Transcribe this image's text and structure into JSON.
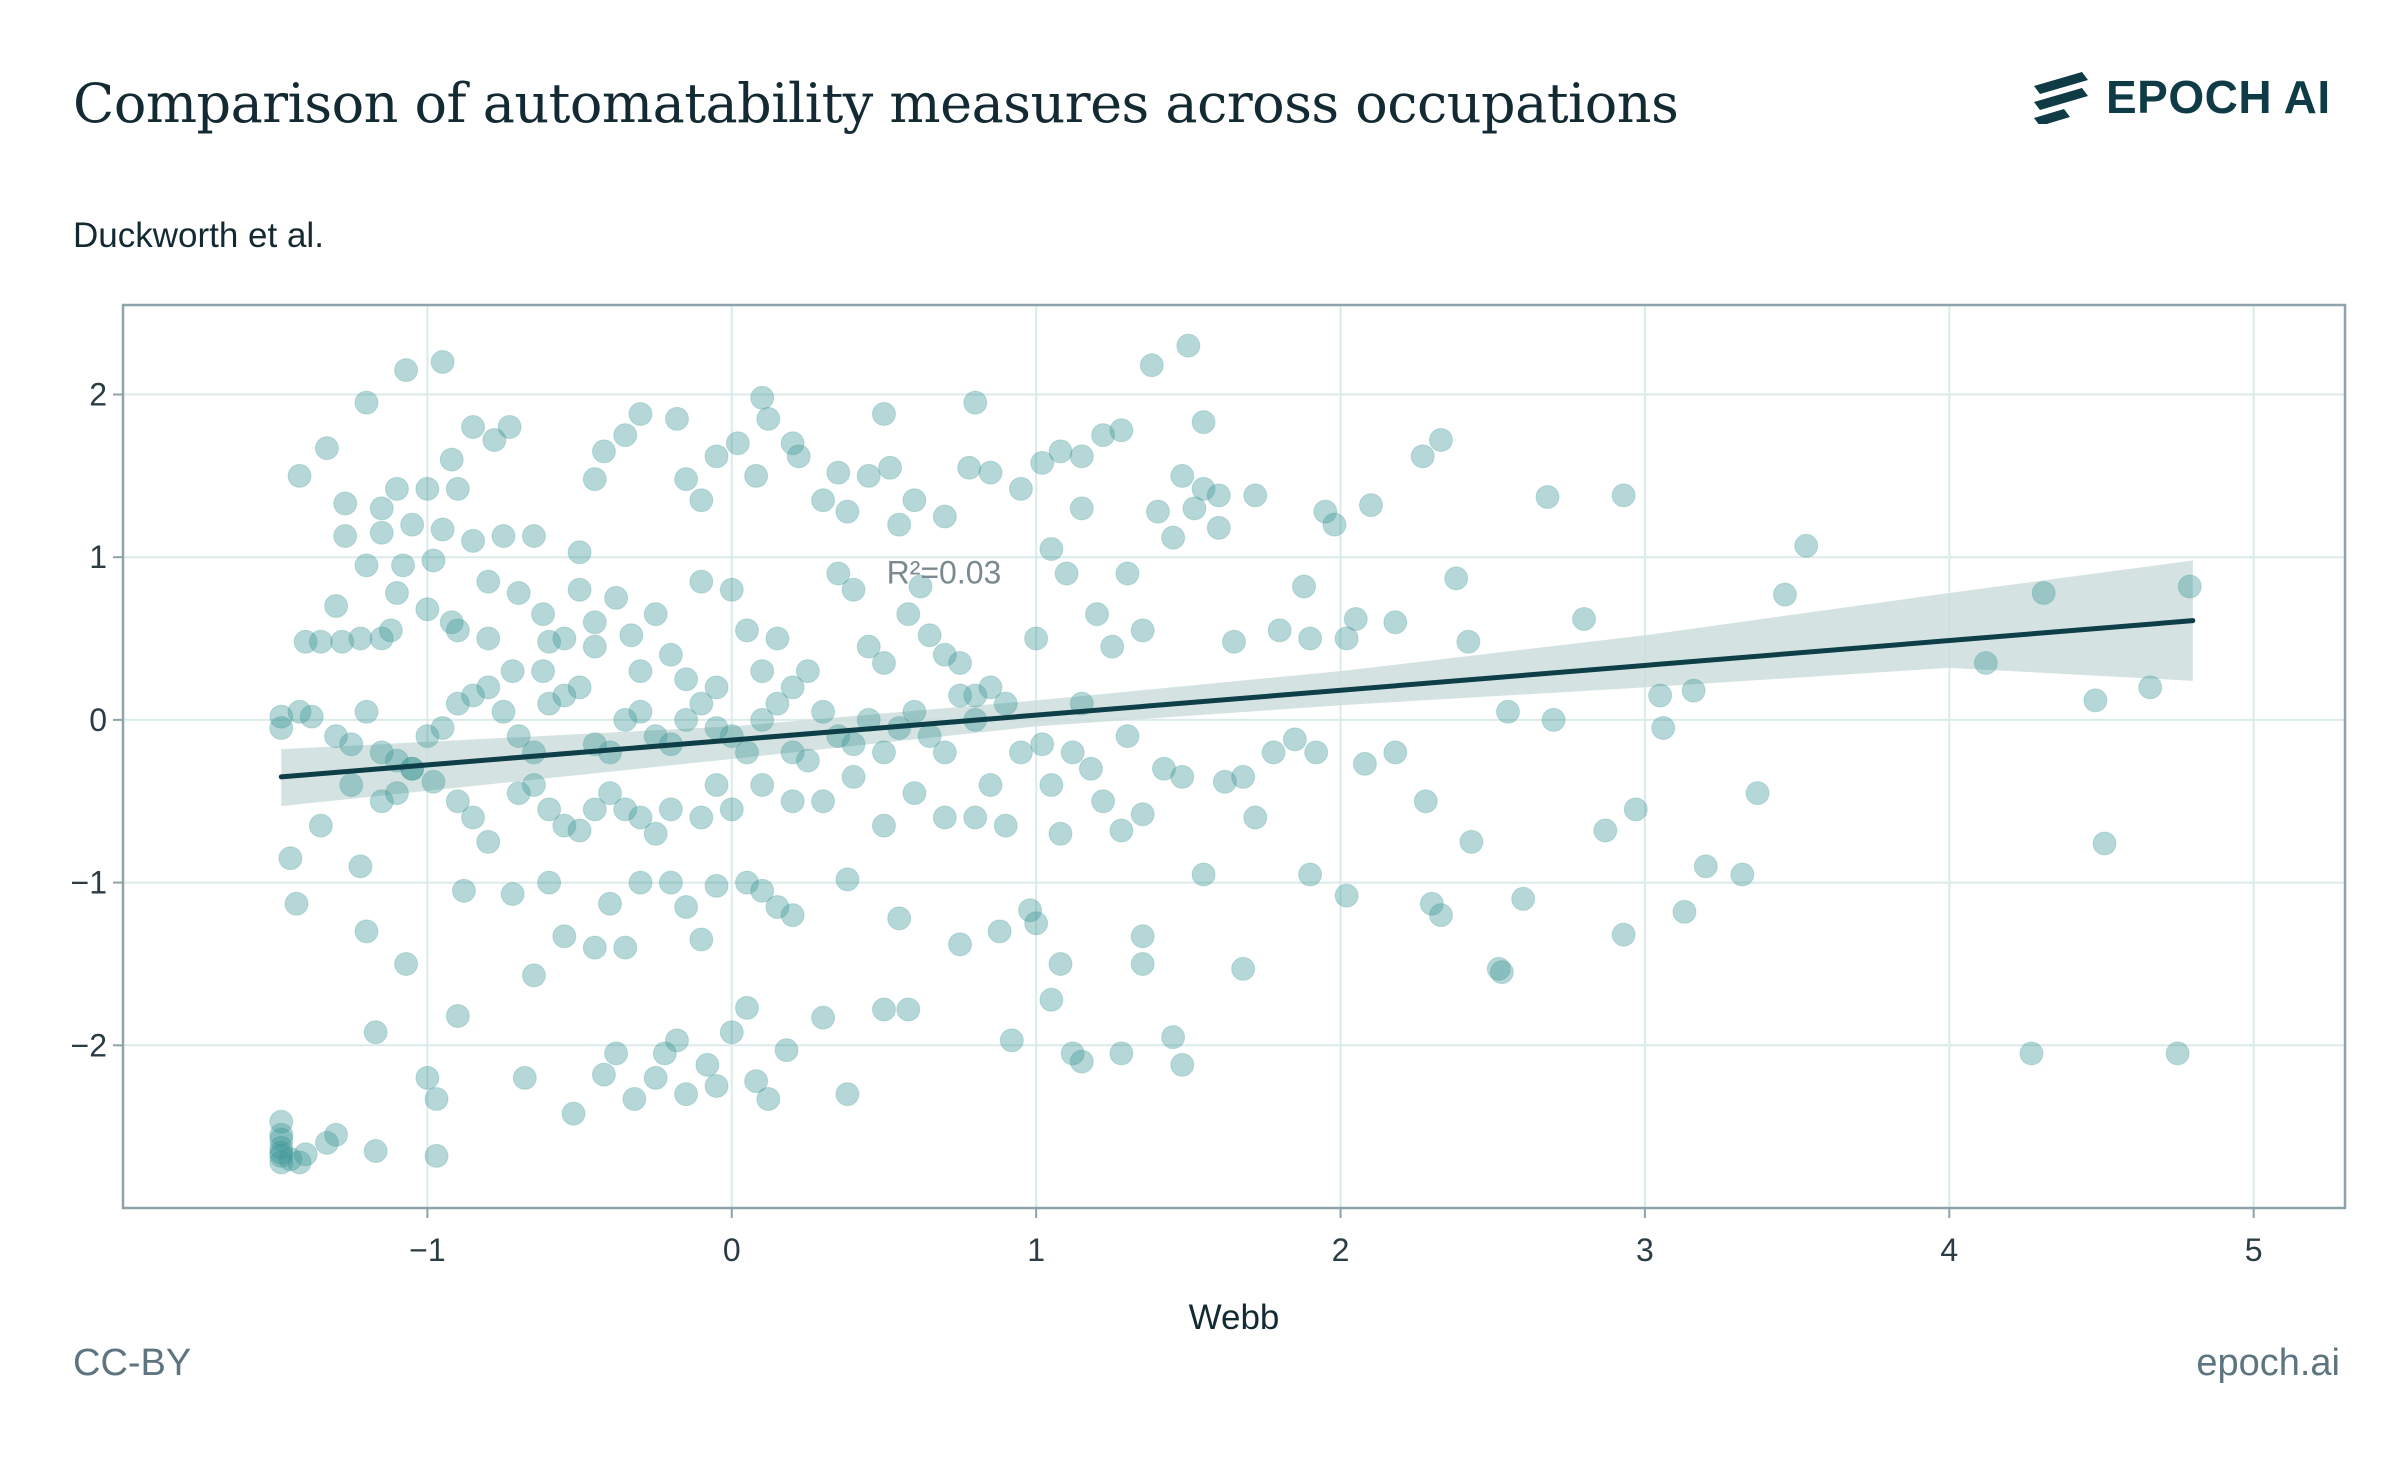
{
  "header": {
    "title": "Comparison of automatability measures across occupations",
    "brand": "EPOCH AI"
  },
  "footer": {
    "license": "CC-BY",
    "site": "epoch.ai"
  },
  "colors": {
    "points": "#3d9695",
    "line": "#0e3f48",
    "band": "#c9dcdb",
    "grid": "#dcebea",
    "frame": "#8ea3aa"
  },
  "chart_data": {
    "type": "scatter",
    "title": "Comparison of automatability measures across occupations",
    "subtitle": "Duckworth et al.",
    "xlabel": "Webb",
    "ylabel": "Duckworth et al.",
    "xlim": [
      -2.0,
      5.3
    ],
    "ylim": [
      -3.0,
      2.55
    ],
    "x_ticks": [
      -1,
      0,
      1,
      2,
      3,
      4,
      5
    ],
    "y_ticks": [
      -2,
      -1,
      0,
      1,
      2
    ],
    "x_tick_labels": [
      "−1",
      "0",
      "1",
      "2",
      "3",
      "4",
      "5"
    ],
    "y_tick_labels": [
      "−2",
      "−1",
      "0",
      "1",
      "2"
    ],
    "grid": true,
    "annotation": {
      "text": "R²=0.03",
      "x": 0.5,
      "y": 0.95
    },
    "regression": {
      "x_start": -1.48,
      "x_end": 4.8,
      "y_start": -0.35,
      "y_end": 0.61
    },
    "confidence_band": {
      "x": [
        -1.48,
        0.0,
        1.0,
        2.0,
        3.0,
        4.0,
        4.8
      ],
      "upper": [
        -0.18,
        -0.04,
        0.12,
        0.3,
        0.52,
        0.78,
        0.98
      ],
      "lower": [
        -0.53,
        -0.24,
        -0.04,
        0.09,
        0.2,
        0.32,
        0.24
      ]
    },
    "points": [
      [
        -1.48,
        -2.58
      ],
      [
        -1.48,
        -2.63
      ],
      [
        -1.48,
        -2.68
      ],
      [
        -1.48,
        -2.72
      ],
      [
        -1.48,
        -2.66
      ],
      [
        -1.48,
        -2.55
      ],
      [
        -1.48,
        -2.47
      ],
      [
        -1.45,
        -2.7
      ],
      [
        -1.42,
        -2.72
      ],
      [
        -1.4,
        -2.67
      ],
      [
        -1.33,
        -2.6
      ],
      [
        -1.3,
        -2.55
      ],
      [
        -1.17,
        -2.65
      ],
      [
        -0.97,
        -2.68
      ],
      [
        -1.42,
        1.5
      ],
      [
        -1.33,
        1.67
      ],
      [
        -1.2,
        1.95
      ],
      [
        -1.07,
        2.15
      ],
      [
        -0.95,
        2.2
      ],
      [
        -0.85,
        1.8
      ],
      [
        -0.73,
        1.8
      ],
      [
        -0.92,
        1.6
      ],
      [
        -0.78,
        1.72
      ],
      [
        -1.1,
        1.42
      ],
      [
        -1.0,
        1.42
      ],
      [
        -0.9,
        1.42
      ],
      [
        -1.15,
        1.3
      ],
      [
        -1.27,
        1.33
      ],
      [
        -1.27,
        1.13
      ],
      [
        -1.15,
        1.15
      ],
      [
        -1.05,
        1.2
      ],
      [
        -0.95,
        1.17
      ],
      [
        -0.85,
        1.1
      ],
      [
        -0.75,
        1.13
      ],
      [
        -0.65,
        1.13
      ],
      [
        -1.2,
        0.95
      ],
      [
        -1.08,
        0.95
      ],
      [
        -0.98,
        0.98
      ],
      [
        -0.8,
        0.85
      ],
      [
        -0.7,
        0.78
      ],
      [
        -0.62,
        0.65
      ],
      [
        -1.1,
        0.78
      ],
      [
        -1.0,
        0.68
      ],
      [
        -0.92,
        0.6
      ],
      [
        -1.3,
        0.7
      ],
      [
        -1.28,
        0.48
      ],
      [
        -1.22,
        0.5
      ],
      [
        -1.15,
        0.5
      ],
      [
        -1.12,
        0.55
      ],
      [
        -0.9,
        0.55
      ],
      [
        -0.8,
        0.5
      ],
      [
        -0.72,
        0.3
      ],
      [
        -0.6,
        0.48
      ],
      [
        -0.55,
        0.5
      ],
      [
        -0.62,
        0.3
      ],
      [
        -0.45,
        0.45
      ],
      [
        -1.4,
        0.48
      ],
      [
        -1.35,
        0.48
      ],
      [
        -1.48,
        0.02
      ],
      [
        -1.48,
        -0.05
      ],
      [
        -1.42,
        0.05
      ],
      [
        -1.38,
        0.02
      ],
      [
        -1.3,
        -0.1
      ],
      [
        -1.25,
        -0.15
      ],
      [
        -1.2,
        0.05
      ],
      [
        -1.15,
        -0.2
      ],
      [
        -1.1,
        -0.25
      ],
      [
        -1.05,
        -0.3
      ],
      [
        -1.0,
        -0.1
      ],
      [
        -0.95,
        -0.05
      ],
      [
        -0.9,
        0.1
      ],
      [
        -0.85,
        0.15
      ],
      [
        -0.8,
        0.2
      ],
      [
        -0.75,
        0.05
      ],
      [
        -0.7,
        -0.1
      ],
      [
        -0.65,
        -0.2
      ],
      [
        -0.6,
        0.1
      ],
      [
        -0.55,
        0.15
      ],
      [
        -0.5,
        0.2
      ],
      [
        -0.45,
        -0.15
      ],
      [
        -0.4,
        -0.2
      ],
      [
        -0.35,
        0.0
      ],
      [
        -0.3,
        0.05
      ],
      [
        -0.25,
        -0.1
      ],
      [
        -0.2,
        -0.15
      ],
      [
        -0.15,
        0.0
      ],
      [
        -0.1,
        0.1
      ],
      [
        -0.05,
        -0.05
      ],
      [
        0.0,
        -0.1
      ],
      [
        0.05,
        -0.2
      ],
      [
        0.1,
        0.0
      ],
      [
        0.15,
        0.1
      ],
      [
        0.2,
        -0.2
      ],
      [
        0.25,
        -0.25
      ],
      [
        0.3,
        0.05
      ],
      [
        0.35,
        -0.1
      ],
      [
        0.4,
        -0.15
      ],
      [
        0.45,
        0.0
      ],
      [
        0.5,
        -0.2
      ],
      [
        0.55,
        -0.05
      ],
      [
        0.6,
        0.05
      ],
      [
        0.65,
        -0.1
      ],
      [
        0.7,
        -0.2
      ],
      [
        0.75,
        0.15
      ],
      [
        0.8,
        0.0
      ],
      [
        0.85,
        -0.4
      ],
      [
        0.9,
        0.1
      ],
      [
        0.95,
        -0.2
      ],
      [
        -1.25,
        -0.4
      ],
      [
        -1.15,
        -0.5
      ],
      [
        -1.1,
        -0.45
      ],
      [
        -1.05,
        -0.3
      ],
      [
        -0.98,
        -0.38
      ],
      [
        -0.9,
        -0.5
      ],
      [
        -0.85,
        -0.6
      ],
      [
        -0.8,
        -0.75
      ],
      [
        -0.7,
        -0.45
      ],
      [
        -0.65,
        -0.4
      ],
      [
        -0.6,
        -0.55
      ],
      [
        -0.55,
        -0.65
      ],
      [
        -0.5,
        -0.68
      ],
      [
        -0.45,
        -0.55
      ],
      [
        -0.4,
        -0.45
      ],
      [
        -0.35,
        -0.55
      ],
      [
        -0.3,
        -0.6
      ],
      [
        -0.25,
        -0.7
      ],
      [
        -0.2,
        -0.55
      ],
      [
        -0.1,
        -0.6
      ],
      [
        -0.05,
        -0.4
      ],
      [
        0.0,
        -0.55
      ],
      [
        0.1,
        -0.4
      ],
      [
        0.2,
        -0.5
      ],
      [
        0.3,
        -0.5
      ],
      [
        0.4,
        -0.35
      ],
      [
        0.5,
        -0.65
      ],
      [
        0.6,
        -0.45
      ],
      [
        0.7,
        -0.6
      ],
      [
        0.8,
        -0.6
      ],
      [
        0.9,
        -0.65
      ],
      [
        -1.45,
        -0.85
      ],
      [
        -1.43,
        -1.13
      ],
      [
        -1.35,
        -0.65
      ],
      [
        -1.22,
        -0.9
      ],
      [
        -1.2,
        -1.3
      ],
      [
        -1.07,
        -1.5
      ],
      [
        -0.88,
        -1.05
      ],
      [
        -0.72,
        -1.07
      ],
      [
        -0.6,
        -1.0
      ],
      [
        -0.55,
        -1.33
      ],
      [
        -0.45,
        -1.4
      ],
      [
        -0.4,
        -1.13
      ],
      [
        -0.35,
        -1.4
      ],
      [
        -0.3,
        -1.0
      ],
      [
        -0.2,
        -1.0
      ],
      [
        -0.15,
        -1.15
      ],
      [
        -0.1,
        -1.35
      ],
      [
        -0.05,
        -1.02
      ],
      [
        0.05,
        -1.0
      ],
      [
        0.1,
        -1.05
      ],
      [
        0.15,
        -1.15
      ],
      [
        0.2,
        -1.2
      ],
      [
        0.38,
        -0.98
      ],
      [
        0.55,
        -1.22
      ],
      [
        0.75,
        -1.38
      ],
      [
        0.88,
        -1.3
      ],
      [
        0.98,
        -1.17
      ],
      [
        -1.17,
        -1.92
      ],
      [
        -1.0,
        -2.2
      ],
      [
        -0.97,
        -2.33
      ],
      [
        -0.9,
        -1.82
      ],
      [
        -0.68,
        -2.2
      ],
      [
        -0.65,
        -1.57
      ],
      [
        -0.52,
        -2.42
      ],
      [
        -0.42,
        -2.18
      ],
      [
        -0.38,
        -2.05
      ],
      [
        -0.32,
        -2.33
      ],
      [
        -0.25,
        -2.2
      ],
      [
        -0.22,
        -2.05
      ],
      [
        -0.18,
        -1.97
      ],
      [
        -0.15,
        -2.3
      ],
      [
        -0.08,
        -2.12
      ],
      [
        -0.05,
        -2.25
      ],
      [
        0.0,
        -1.92
      ],
      [
        0.05,
        -1.77
      ],
      [
        0.08,
        -2.22
      ],
      [
        0.12,
        -2.33
      ],
      [
        0.18,
        -2.03
      ],
      [
        0.3,
        -1.83
      ],
      [
        0.38,
        -2.3
      ],
      [
        0.5,
        -1.78
      ],
      [
        0.58,
        -1.78
      ],
      [
        0.92,
        -1.97
      ],
      [
        -0.5,
        1.03
      ],
      [
        -0.45,
        1.48
      ],
      [
        -0.42,
        1.65
      ],
      [
        -0.35,
        1.75
      ],
      [
        -0.3,
        1.88
      ],
      [
        -0.18,
        1.85
      ],
      [
        -0.15,
        1.48
      ],
      [
        -0.1,
        1.35
      ],
      [
        -0.05,
        1.62
      ],
      [
        0.02,
        1.7
      ],
      [
        0.08,
        1.5
      ],
      [
        0.1,
        1.98
      ],
      [
        0.12,
        1.85
      ],
      [
        0.2,
        1.7
      ],
      [
        0.22,
        1.62
      ],
      [
        0.3,
        1.35
      ],
      [
        0.35,
        1.52
      ],
      [
        0.38,
        1.28
      ],
      [
        0.45,
        1.5
      ],
      [
        0.5,
        1.88
      ],
      [
        0.52,
        1.55
      ],
      [
        0.55,
        1.2
      ],
      [
        0.6,
        1.35
      ],
      [
        0.7,
        1.25
      ],
      [
        0.78,
        1.55
      ],
      [
        0.8,
        1.95
      ],
      [
        0.85,
        1.52
      ],
      [
        0.95,
        1.42
      ],
      [
        -0.5,
        0.8
      ],
      [
        -0.45,
        0.6
      ],
      [
        -0.38,
        0.75
      ],
      [
        -0.33,
        0.52
      ],
      [
        -0.3,
        0.3
      ],
      [
        -0.25,
        0.65
      ],
      [
        -0.2,
        0.4
      ],
      [
        -0.15,
        0.25
      ],
      [
        -0.1,
        0.85
      ],
      [
        -0.05,
        0.2
      ],
      [
        0.0,
        0.8
      ],
      [
        0.05,
        0.55
      ],
      [
        0.1,
        0.3
      ],
      [
        0.15,
        0.5
      ],
      [
        0.2,
        0.2
      ],
      [
        0.25,
        0.3
      ],
      [
        0.35,
        0.9
      ],
      [
        0.4,
        0.8
      ],
      [
        0.45,
        0.45
      ],
      [
        0.5,
        0.35
      ],
      [
        0.58,
        0.65
      ],
      [
        0.62,
        0.82
      ],
      [
        0.65,
        0.52
      ],
      [
        0.7,
        0.4
      ],
      [
        0.75,
        0.35
      ],
      [
        0.8,
        0.15
      ],
      [
        0.85,
        0.2
      ],
      [
        1.02,
        -0.15
      ],
      [
        1.05,
        -0.4
      ],
      [
        1.08,
        -0.7
      ],
      [
        1.12,
        -0.2
      ],
      [
        1.15,
        0.1
      ],
      [
        1.18,
        -0.3
      ],
      [
        1.22,
        -0.5
      ],
      [
        1.28,
        -0.68
      ],
      [
        1.3,
        -0.1
      ],
      [
        1.35,
        -0.58
      ],
      [
        1.42,
        -0.3
      ],
      [
        1.48,
        -0.35
      ],
      [
        1.55,
        -0.95
      ],
      [
        1.62,
        -0.38
      ],
      [
        1.68,
        -0.35
      ],
      [
        1.72,
        -0.6
      ],
      [
        1.78,
        -0.2
      ],
      [
        1.85,
        -0.12
      ],
      [
        1.92,
        -0.2
      ],
      [
        2.08,
        -0.27
      ],
      [
        2.18,
        -0.2
      ],
      [
        2.28,
        -0.5
      ],
      [
        2.43,
        -0.75
      ],
      [
        1.0,
        0.5
      ],
      [
        1.05,
        1.05
      ],
      [
        1.1,
        0.9
      ],
      [
        1.15,
        1.3
      ],
      [
        1.2,
        0.65
      ],
      [
        1.25,
        0.45
      ],
      [
        1.3,
        0.9
      ],
      [
        1.35,
        0.55
      ],
      [
        1.4,
        1.28
      ],
      [
        1.45,
        1.12
      ],
      [
        1.48,
        1.5
      ],
      [
        1.52,
        1.3
      ],
      [
        1.55,
        1.42
      ],
      [
        1.6,
        1.18
      ],
      [
        1.65,
        0.48
      ],
      [
        1.72,
        1.38
      ],
      [
        1.8,
        0.55
      ],
      [
        1.88,
        0.82
      ],
      [
        1.9,
        0.5
      ],
      [
        1.95,
        1.28
      ],
      [
        1.98,
        1.2
      ],
      [
        2.02,
        0.5
      ],
      [
        2.05,
        0.62
      ],
      [
        2.1,
        1.32
      ],
      [
        2.18,
        0.6
      ],
      [
        2.27,
        1.62
      ],
      [
        2.33,
        1.72
      ],
      [
        2.38,
        0.87
      ],
      [
        2.42,
        0.48
      ],
      [
        1.02,
        1.58
      ],
      [
        1.08,
        1.65
      ],
      [
        1.15,
        1.62
      ],
      [
        1.22,
        1.75
      ],
      [
        1.28,
        1.78
      ],
      [
        1.38,
        2.18
      ],
      [
        1.5,
        2.3
      ],
      [
        1.55,
        1.83
      ],
      [
        1.6,
        1.38
      ],
      [
        1.0,
        -1.25
      ],
      [
        1.05,
        -1.72
      ],
      [
        1.08,
        -1.5
      ],
      [
        1.12,
        -2.05
      ],
      [
        1.15,
        -2.1
      ],
      [
        1.28,
        -2.05
      ],
      [
        1.35,
        -1.5
      ],
      [
        1.35,
        -1.33
      ],
      [
        1.45,
        -1.95
      ],
      [
        1.48,
        -2.12
      ],
      [
        1.68,
        -1.53
      ],
      [
        1.9,
        -0.95
      ],
      [
        2.02,
        -1.08
      ],
      [
        2.3,
        -1.13
      ],
      [
        2.33,
        -1.2
      ],
      [
        2.52,
        -1.53
      ],
      [
        2.53,
        -1.55
      ],
      [
        2.6,
        -1.1
      ],
      [
        2.55,
        0.05
      ],
      [
        2.68,
        1.37
      ],
      [
        2.7,
        0.0
      ],
      [
        2.8,
        0.62
      ],
      [
        2.87,
        -0.68
      ],
      [
        2.93,
        1.38
      ],
      [
        2.93,
        -1.32
      ],
      [
        2.97,
        -0.55
      ],
      [
        3.05,
        0.15
      ],
      [
        3.06,
        -0.05
      ],
      [
        3.13,
        -1.18
      ],
      [
        3.16,
        0.18
      ],
      [
        3.2,
        -0.9
      ],
      [
        3.32,
        -0.95
      ],
      [
        3.37,
        -0.45
      ],
      [
        3.46,
        0.77
      ],
      [
        3.53,
        1.07
      ],
      [
        4.12,
        0.35
      ],
      [
        4.27,
        -2.05
      ],
      [
        4.31,
        0.78
      ],
      [
        4.48,
        0.12
      ],
      [
        4.51,
        -0.76
      ],
      [
        4.66,
        0.2
      ],
      [
        4.75,
        -2.05
      ],
      [
        4.79,
        0.82
      ]
    ]
  }
}
